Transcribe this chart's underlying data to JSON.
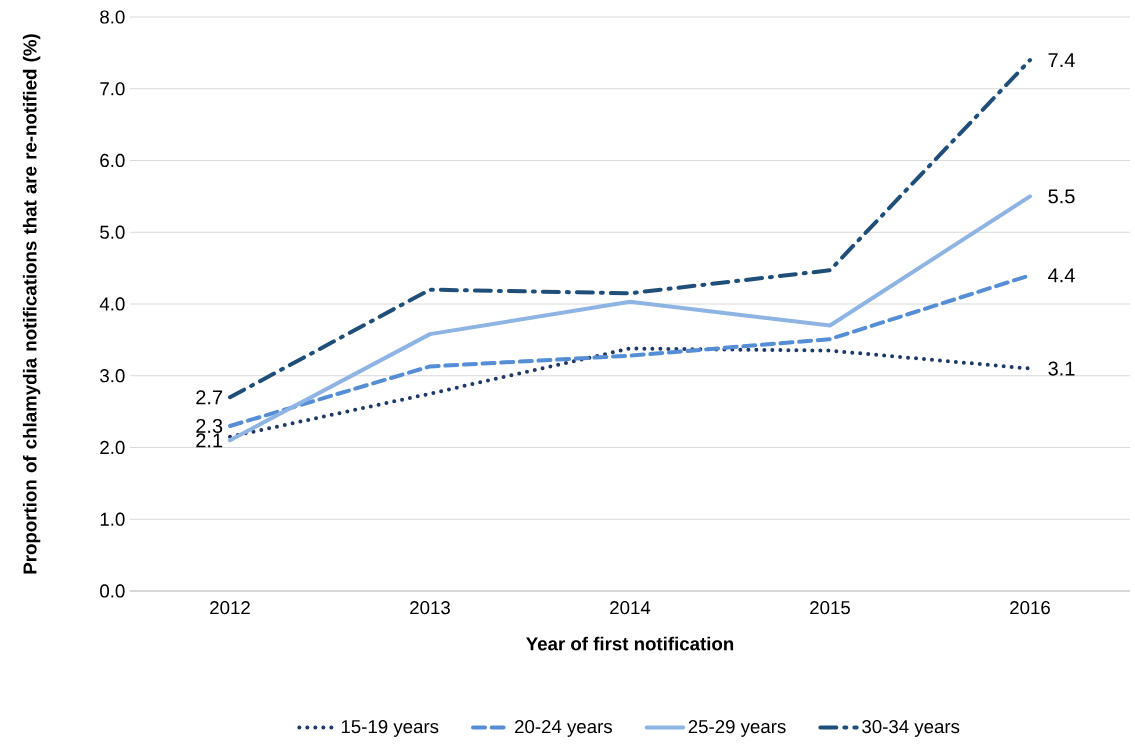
{
  "chart_data": {
    "type": "line",
    "xlabel": "Year of first notification",
    "ylabel": "Proportion of chlamydia notifications that are re-notified (%)",
    "categories": [
      "2012",
      "2013",
      "2014",
      "2015",
      "2016"
    ],
    "series": [
      {
        "name": "15-19 years",
        "color": "#203864",
        "line_style": "dotted",
        "values": [
          2.15,
          2.75,
          3.38,
          3.35,
          3.1
        ],
        "value_labels": [
          null,
          null,
          null,
          null,
          "3.1"
        ]
      },
      {
        "name": "20-24 years",
        "color": "#558ed5",
        "line_style": "dashed",
        "values": [
          2.3,
          3.13,
          3.28,
          3.51,
          4.4
        ],
        "value_labels": [
          "2.3",
          null,
          null,
          null,
          "4.4"
        ]
      },
      {
        "name": "25-29 years",
        "color": "#8eb4e3",
        "line_style": "solid",
        "values": [
          2.1,
          3.58,
          4.03,
          3.7,
          5.5
        ],
        "value_labels": [
          "2.1",
          null,
          null,
          null,
          "5.5"
        ]
      },
      {
        "name": "30-34 years",
        "color": "#1f4e79",
        "line_style": "dashdot",
        "values": [
          2.7,
          4.2,
          4.15,
          4.47,
          7.4
        ],
        "value_labels": [
          "2.7",
          null,
          null,
          null,
          "7.4"
        ]
      }
    ],
    "ylim": [
      0,
      8
    ],
    "yticks": [
      {
        "value": 0,
        "label": "0.0"
      },
      {
        "value": 1,
        "label": "1.0"
      },
      {
        "value": 2,
        "label": "2.0"
      },
      {
        "value": 3,
        "label": "3.0"
      },
      {
        "value": 4,
        "label": "4.0"
      },
      {
        "value": 5,
        "label": "5.0"
      },
      {
        "value": 6,
        "label": "6.0"
      },
      {
        "value": 7,
        "label": "7.0"
      },
      {
        "value": 8,
        "label": "8.0"
      }
    ],
    "grid": "y",
    "legend": "bottom",
    "marker": "none"
  }
}
